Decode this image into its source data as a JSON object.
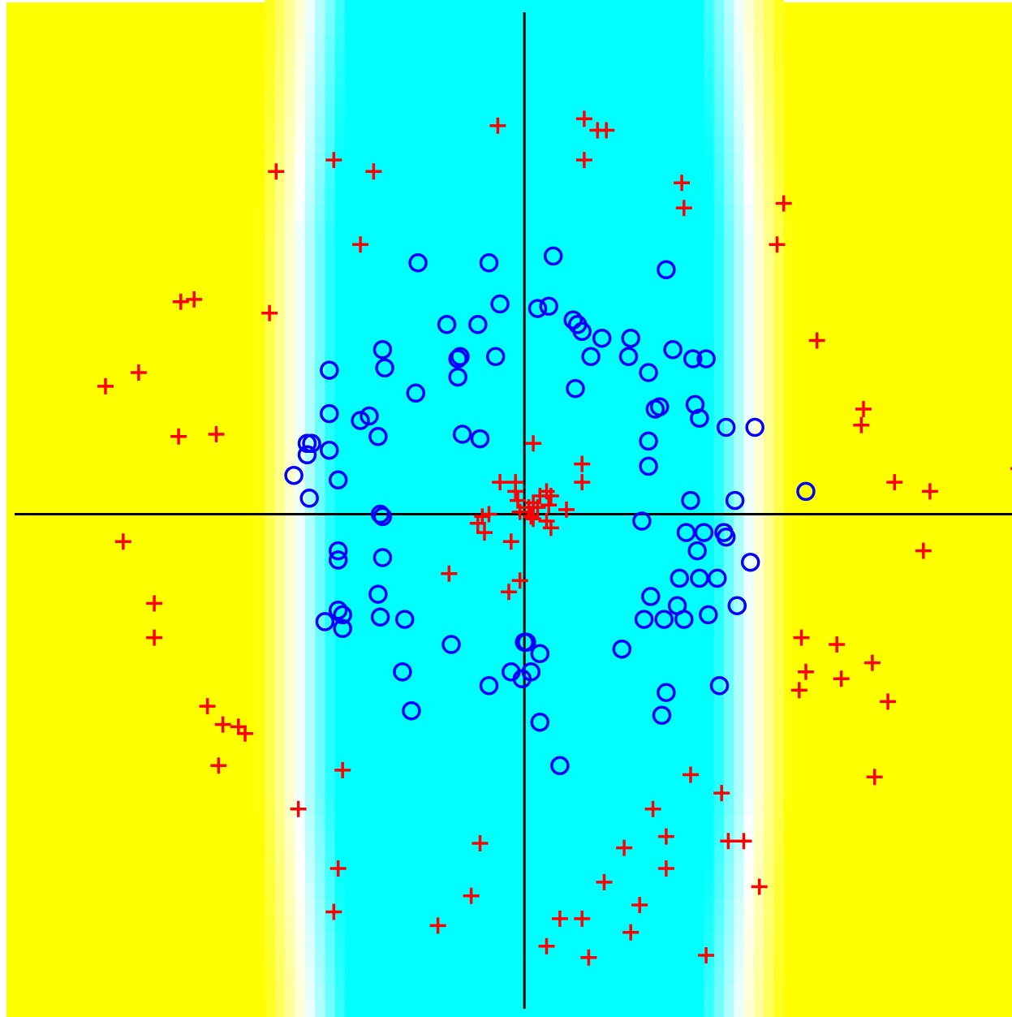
{
  "chart_data": {
    "type": "scatter",
    "title": "",
    "xlabel": "",
    "ylabel": "",
    "xlim": [
      -2.3,
      2.2
    ],
    "ylim": [
      -2.2,
      2.25
    ],
    "grid": false,
    "legend": "none",
    "background": {
      "type": "decision-surface",
      "inside_color": "#00FFFF",
      "outside_color": "#FFFF00",
      "transition_color": "#FFFFFF",
      "inner_half_width": 0.85,
      "outer_half_width": 1.2,
      "extent_y": [
        -2.2,
        2.25
      ]
    },
    "axes_lines": {
      "x0": 0,
      "y0": 0,
      "color": "#000000"
    },
    "series": [
      {
        "marker": "circle",
        "color": "#0000FF",
        "points": [
          [
            -0.48,
            1.1
          ],
          [
            -0.16,
            1.1
          ],
          [
            0.13,
            1.13
          ],
          [
            0.64,
            1.07
          ],
          [
            -0.11,
            0.92
          ],
          [
            0.06,
            0.9
          ],
          [
            0.11,
            0.91
          ],
          [
            -0.21,
            0.83
          ],
          [
            -0.35,
            0.83
          ],
          [
            0.22,
            0.85
          ],
          [
            0.24,
            0.83
          ],
          [
            0.26,
            0.8
          ],
          [
            0.35,
            0.77
          ],
          [
            0.48,
            0.77
          ],
          [
            -0.64,
            0.72
          ],
          [
            -0.29,
            0.69
          ],
          [
            -0.3,
            0.68
          ],
          [
            -0.13,
            0.69
          ],
          [
            0.3,
            0.69
          ],
          [
            0.47,
            0.69
          ],
          [
            0.67,
            0.72
          ],
          [
            -0.88,
            0.63
          ],
          [
            -0.63,
            0.64
          ],
          [
            0.56,
            0.62
          ],
          [
            0.82,
            0.68
          ],
          [
            0.76,
            0.68
          ],
          [
            -0.3,
            0.6
          ],
          [
            0.23,
            0.55
          ],
          [
            -0.49,
            0.53
          ],
          [
            0.61,
            0.47
          ],
          [
            0.77,
            0.48
          ],
          [
            -0.88,
            0.44
          ],
          [
            -0.7,
            0.43
          ],
          [
            -0.74,
            0.41
          ],
          [
            0.59,
            0.46
          ],
          [
            0.79,
            0.42
          ],
          [
            0.91,
            0.38
          ],
          [
            1.04,
            0.38
          ],
          [
            -0.66,
            0.34
          ],
          [
            -0.2,
            0.33
          ],
          [
            -0.28,
            0.35
          ],
          [
            -0.96,
            0.31
          ],
          [
            -0.88,
            0.28
          ],
          [
            -0.98,
            0.31
          ],
          [
            0.56,
            0.32
          ],
          [
            -0.98,
            0.26
          ],
          [
            0.56,
            0.21
          ],
          [
            -1.04,
            0.17
          ],
          [
            -0.84,
            0.15
          ],
          [
            1.27,
            0.1
          ],
          [
            -0.97,
            0.07
          ],
          [
            0.75,
            0.06
          ],
          [
            0.95,
            0.06
          ],
          [
            -0.65,
            0.0
          ],
          [
            -0.64,
            -0.01
          ],
          [
            0.53,
            -0.03
          ],
          [
            0.73,
            -0.08
          ],
          [
            0.81,
            -0.08
          ],
          [
            0.9,
            -0.08
          ],
          [
            0.91,
            -0.1
          ],
          [
            -0.84,
            -0.16
          ],
          [
            -0.84,
            -0.2
          ],
          [
            -0.64,
            -0.19
          ],
          [
            0.78,
            -0.16
          ],
          [
            1.02,
            -0.21
          ],
          [
            0.7,
            -0.28
          ],
          [
            0.79,
            -0.28
          ],
          [
            0.87,
            -0.28
          ],
          [
            -0.66,
            -0.35
          ],
          [
            0.57,
            -0.36
          ],
          [
            0.69,
            -0.4
          ],
          [
            0.96,
            -0.4
          ],
          [
            -0.84,
            -0.42
          ],
          [
            -0.82,
            -0.44
          ],
          [
            -0.65,
            -0.45
          ],
          [
            -0.54,
            -0.46
          ],
          [
            -0.9,
            -0.47
          ],
          [
            -0.82,
            -0.5
          ],
          [
            0.54,
            -0.46
          ],
          [
            0.63,
            -0.46
          ],
          [
            0.72,
            -0.46
          ],
          [
            0.83,
            -0.44
          ],
          [
            -0.33,
            -0.57
          ],
          [
            0.0,
            -0.56
          ],
          [
            0.01,
            -0.56
          ],
          [
            0.07,
            -0.61
          ],
          [
            0.44,
            -0.59
          ],
          [
            -0.55,
            -0.69
          ],
          [
            -0.16,
            -0.75
          ],
          [
            -0.06,
            -0.69
          ],
          [
            0.03,
            -0.69
          ],
          [
            -0.01,
            -0.72
          ],
          [
            0.88,
            -0.75
          ],
          [
            0.64,
            -0.78
          ],
          [
            -0.51,
            -0.86
          ],
          [
            0.62,
            -0.88
          ],
          [
            0.07,
            -0.91
          ],
          [
            0.16,
            -1.1
          ]
        ]
      },
      {
        "marker": "plus",
        "color": "#FF0000",
        "points": [
          [
            -0.12,
            1.7
          ],
          [
            0.27,
            1.73
          ],
          [
            0.33,
            1.68
          ],
          [
            0.37,
            1.68
          ],
          [
            -0.86,
            1.55
          ],
          [
            -1.12,
            1.5
          ],
          [
            -0.68,
            1.5
          ],
          [
            0.27,
            1.55
          ],
          [
            0.71,
            1.45
          ],
          [
            0.72,
            1.34
          ],
          [
            1.17,
            1.36
          ],
          [
            -0.74,
            1.18
          ],
          [
            1.14,
            1.18
          ],
          [
            -1.55,
            0.93
          ],
          [
            -1.49,
            0.94
          ],
          [
            -1.15,
            0.88
          ],
          [
            1.32,
            0.76
          ],
          [
            -1.89,
            0.56
          ],
          [
            -1.74,
            0.62
          ],
          [
            -1.56,
            0.34
          ],
          [
            -1.39,
            0.35
          ],
          [
            1.53,
            0.46
          ],
          [
            1.52,
            0.39
          ],
          [
            0.04,
            0.31
          ],
          [
            0.26,
            0.22
          ],
          [
            0.26,
            0.14
          ],
          [
            1.67,
            0.14
          ],
          [
            2.23,
            0.2
          ],
          [
            1.83,
            0.1
          ],
          [
            -0.11,
            0.14
          ],
          [
            -0.04,
            0.14
          ],
          [
            -0.04,
            0.1
          ],
          [
            0.07,
            0.08
          ],
          [
            0.1,
            0.1
          ],
          [
            0.12,
            0.08
          ],
          [
            -0.03,
            0.06
          ],
          [
            0.02,
            0.03
          ],
          [
            0.04,
            0.05
          ],
          [
            0.06,
            0.03
          ],
          [
            0.11,
            0.04
          ],
          [
            0.19,
            0.02
          ],
          [
            -0.19,
            -0.01
          ],
          [
            -0.21,
            -0.04
          ],
          [
            -0.16,
            0.0
          ],
          [
            -0.02,
            0.01
          ],
          [
            0.03,
            -0.01
          ],
          [
            0.04,
            -0.02
          ],
          [
            0.1,
            -0.03
          ],
          [
            0.12,
            -0.06
          ],
          [
            -0.18,
            -0.08
          ],
          [
            -0.06,
            -0.12
          ],
          [
            -1.81,
            -0.12
          ],
          [
            1.8,
            -0.16
          ],
          [
            -0.34,
            -0.26
          ],
          [
            -0.02,
            -0.29
          ],
          [
            -0.07,
            -0.34
          ],
          [
            -1.67,
            -0.39
          ],
          [
            -1.67,
            -0.54
          ],
          [
            1.25,
            -0.54
          ],
          [
            1.41,
            -0.57
          ],
          [
            1.57,
            -0.65
          ],
          [
            1.27,
            -0.69
          ],
          [
            1.43,
            -0.72
          ],
          [
            1.24,
            -0.77
          ],
          [
            1.64,
            -0.82
          ],
          [
            -1.43,
            -0.84
          ],
          [
            -1.36,
            -0.92
          ],
          [
            -1.29,
            -0.93
          ],
          [
            -1.26,
            -0.96
          ],
          [
            -1.38,
            -1.1
          ],
          [
            -0.82,
            -1.12
          ],
          [
            0.75,
            -1.14
          ],
          [
            0.89,
            -1.22
          ],
          [
            1.58,
            -1.15
          ],
          [
            -1.02,
            -1.29
          ],
          [
            0.58,
            -1.29
          ],
          [
            0.64,
            -1.41
          ],
          [
            0.92,
            -1.43
          ],
          [
            0.99,
            -1.43
          ],
          [
            -0.2,
            -1.44
          ],
          [
            0.45,
            -1.46
          ],
          [
            -0.84,
            -1.55
          ],
          [
            0.64,
            -1.55
          ],
          [
            0.36,
            -1.61
          ],
          [
            1.06,
            -1.63
          ],
          [
            -0.24,
            -1.67
          ],
          [
            0.52,
            -1.71
          ],
          [
            -0.86,
            -1.74
          ],
          [
            0.16,
            -1.77
          ],
          [
            0.26,
            -1.77
          ],
          [
            -0.39,
            -1.8
          ],
          [
            0.48,
            -1.83
          ],
          [
            0.1,
            -1.89
          ],
          [
            0.29,
            -1.94
          ],
          [
            0.82,
            -1.93
          ]
        ]
      }
    ]
  }
}
